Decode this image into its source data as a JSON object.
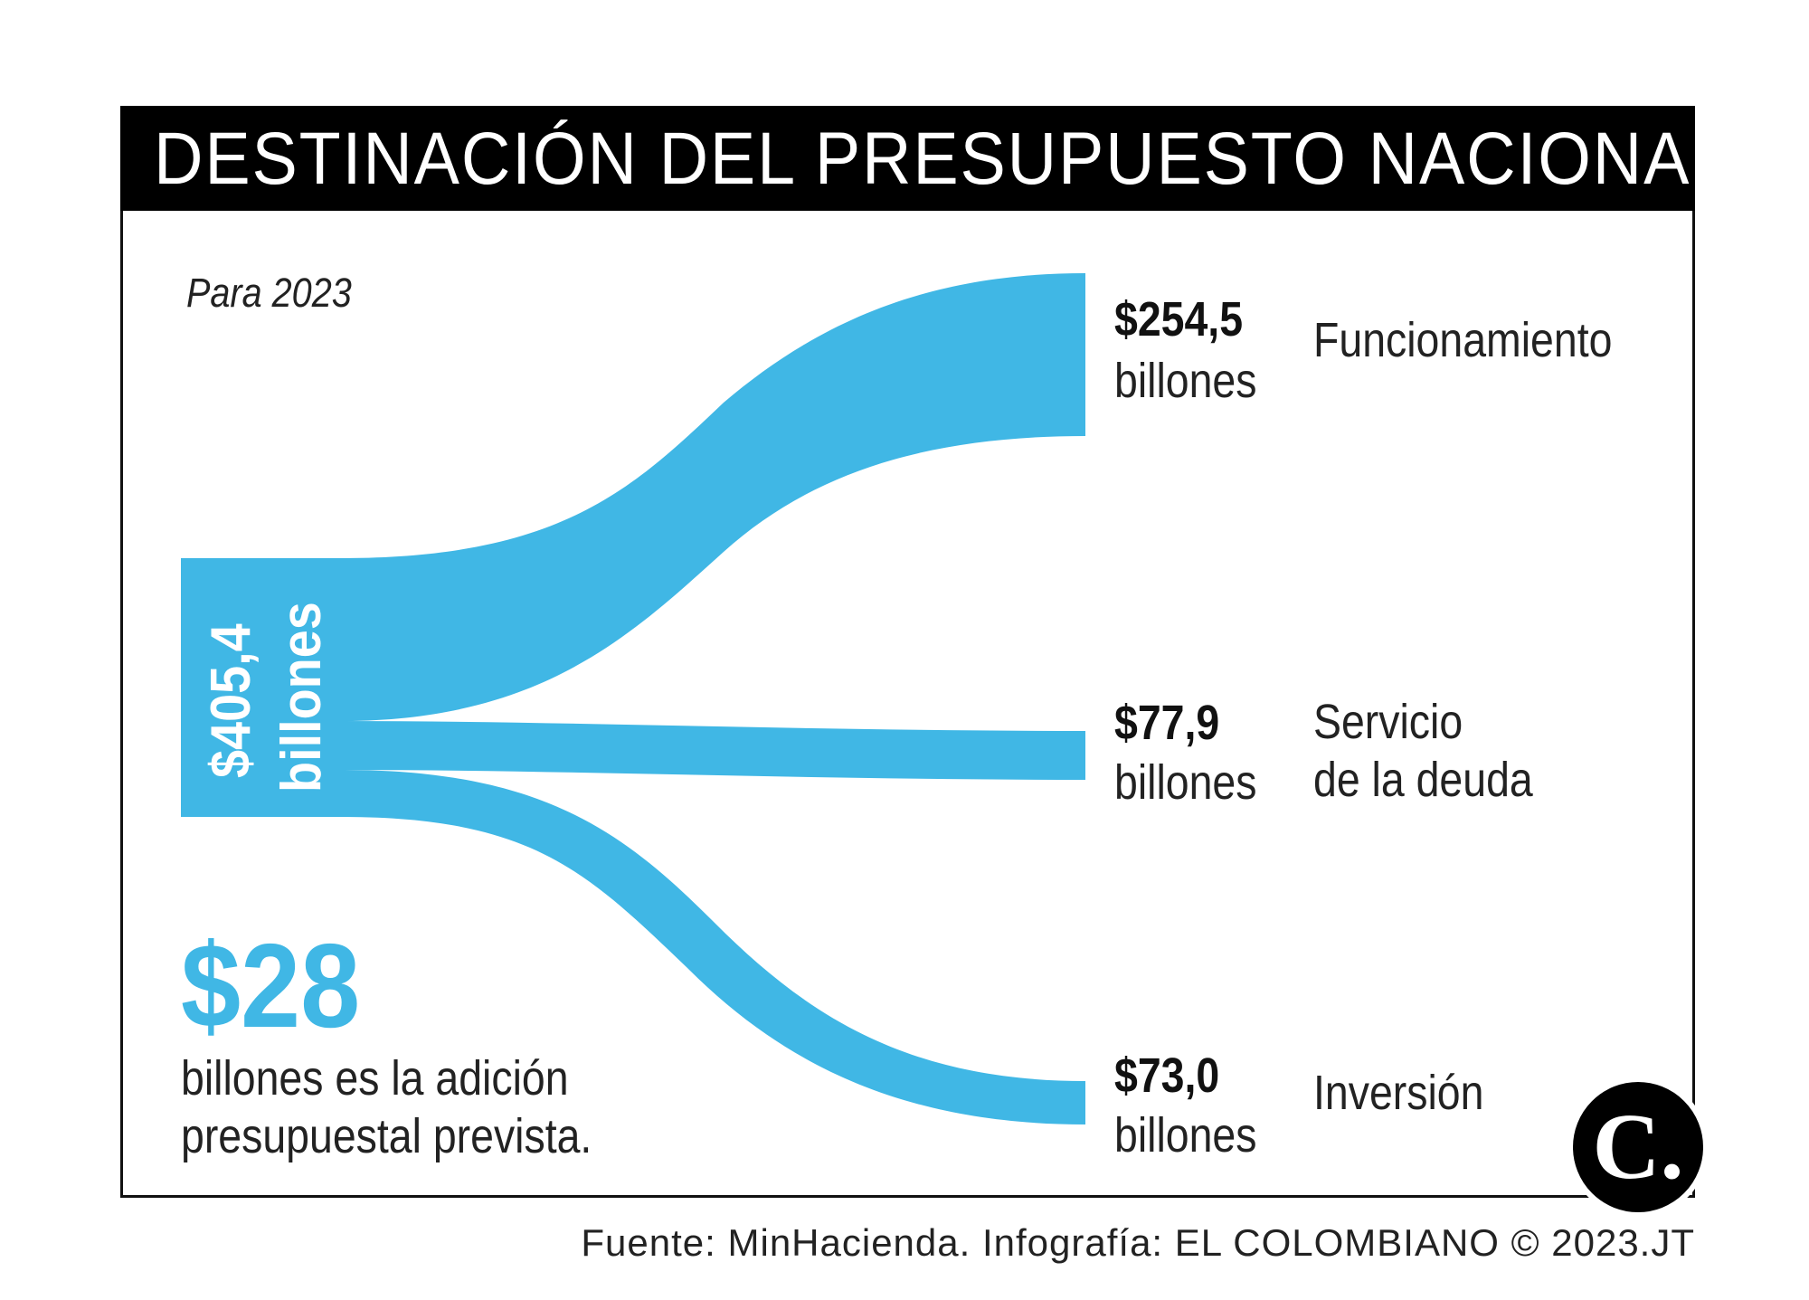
{
  "header": {
    "title": "DESTINACIÓN DEL PRESUPUESTO NACIONAL"
  },
  "subtitle": "Para 2023",
  "colors": {
    "flow": "#40b7e5",
    "title_bar": "#000000",
    "text": "#222222"
  },
  "sankey": {
    "source": {
      "value": "$405,4",
      "unit": "billones",
      "amount": 405.4
    },
    "targets": [
      {
        "value": "$254,5",
        "unit": "billones",
        "label": "Funcionamiento",
        "amount": 254.5
      },
      {
        "value": "$77,9",
        "unit": "billones",
        "label": "Servicio\nde la deuda",
        "amount": 77.9
      },
      {
        "value": "$73,0",
        "unit": "billones",
        "label": "Inversión",
        "amount": 73.0
      }
    ]
  },
  "addition": {
    "value": "$28",
    "text": "billones es la adición\npresupuestal prevista."
  },
  "logo": {
    "letter": "C."
  },
  "footer": {
    "source": "Fuente: MinHacienda. Infografía: EL COLOMBIANO © 2023.JT"
  }
}
